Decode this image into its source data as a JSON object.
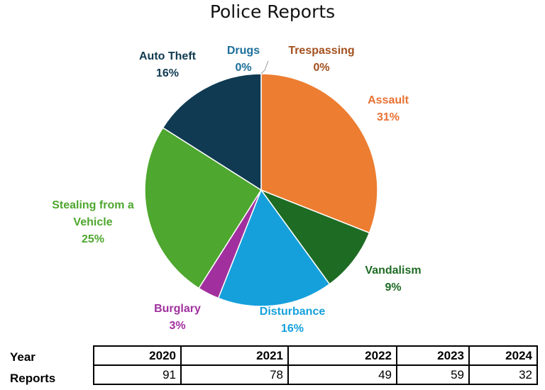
{
  "chart_data": {
    "type": "pie",
    "title": "Police Reports",
    "slices": [
      {
        "label": "Assault",
        "percent_label": "31%",
        "value": 31,
        "color": "#ED7D31"
      },
      {
        "label": "Vandalism",
        "percent_label": "9%",
        "value": 9,
        "color": "#1E6B24"
      },
      {
        "label": "Disturbance",
        "percent_label": "16%",
        "value": 16,
        "color": "#15A0DC"
      },
      {
        "label": "Burglary",
        "percent_label": "3%",
        "value": 3,
        "color": "#A1309E"
      },
      {
        "label": "Stealing from a Vehicle",
        "label_lines": [
          "Stealing from a",
          "Vehicle"
        ],
        "percent_label": "25%",
        "value": 25,
        "color": "#4EA72E"
      },
      {
        "label": "Auto Theft",
        "percent_label": "16%",
        "value": 16,
        "color": "#0F3A52"
      },
      {
        "label": "Drugs",
        "percent_label": "0%",
        "value": 0,
        "color": "#1C6E99"
      },
      {
        "label": "Trespassing",
        "percent_label": "0%",
        "value": 0,
        "color": "#A3501E"
      }
    ],
    "label_colors": {
      "Assault": "#E97132",
      "Vandalism": "#1E6B24",
      "Disturbance": "#15A0DC",
      "Burglary": "#A1309E",
      "Stealing from a Vehicle": "#4EA72E",
      "Auto Theft": "#0F3A52",
      "Drugs": "#1C6E99",
      "Trespassing": "#A3501E"
    }
  },
  "table": {
    "row_labels": {
      "year": "Year",
      "reports": "Reports"
    },
    "years": [
      "2020",
      "2021",
      "2022",
      "2023",
      "2024"
    ],
    "reports": [
      "91",
      "78",
      "49",
      "59",
      "32"
    ]
  }
}
